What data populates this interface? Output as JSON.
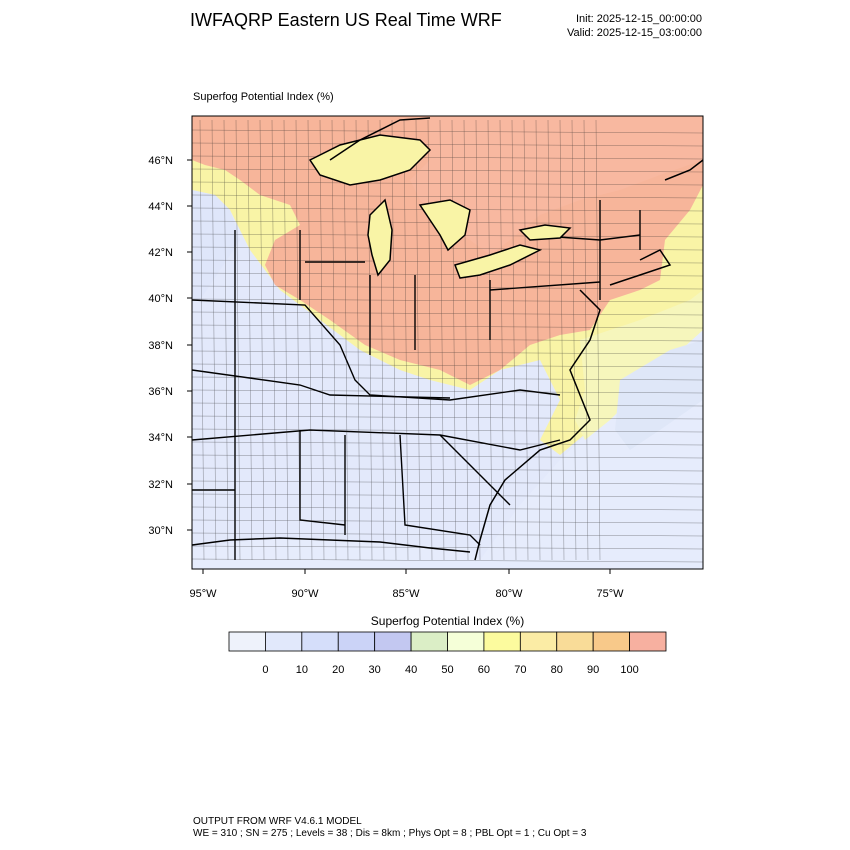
{
  "header": {
    "title": "IWFAQRP Eastern US Real Time WRF",
    "init": "Init: 2025-12-15_00:00:00",
    "valid": "Valid: 2025-12-15_03:00:00"
  },
  "plot": {
    "label": "Superfog Potential Index   (%)",
    "lat_labels": [
      "46°N",
      "44°N",
      "42°N",
      "40°N",
      "38°N",
      "36°N",
      "34°N",
      "32°N",
      "30°N"
    ],
    "lon_labels": [
      "95°W",
      "90°W",
      "85°W",
      "80°W",
      "75°W"
    ]
  },
  "colorbar": {
    "title": "Superfog Potential Index  (%)",
    "tick_labels": [
      "0",
      "10",
      "20",
      "30",
      "40",
      "50",
      "60",
      "70",
      "80",
      "90",
      "100"
    ],
    "colors": [
      "#eef2fb",
      "#e1e8fb",
      "#d5defa",
      "#cbd3f7",
      "#c3c8f1",
      "#dbeec6",
      "#f5ffd8",
      "#fcfb9e",
      "#fbeca5",
      "#f9dc98",
      "#f8c98a",
      "#f7b0a0"
    ]
  },
  "footer": {
    "line1": "OUTPUT FROM WRF V4.6.1 MODEL",
    "line2": "WE = 310 ; SN = 275 ; Levels = 38 ; Dis = 8km ; Phys Opt = 8 ; PBL Opt = 1 ; Cu Opt = 3"
  }
}
